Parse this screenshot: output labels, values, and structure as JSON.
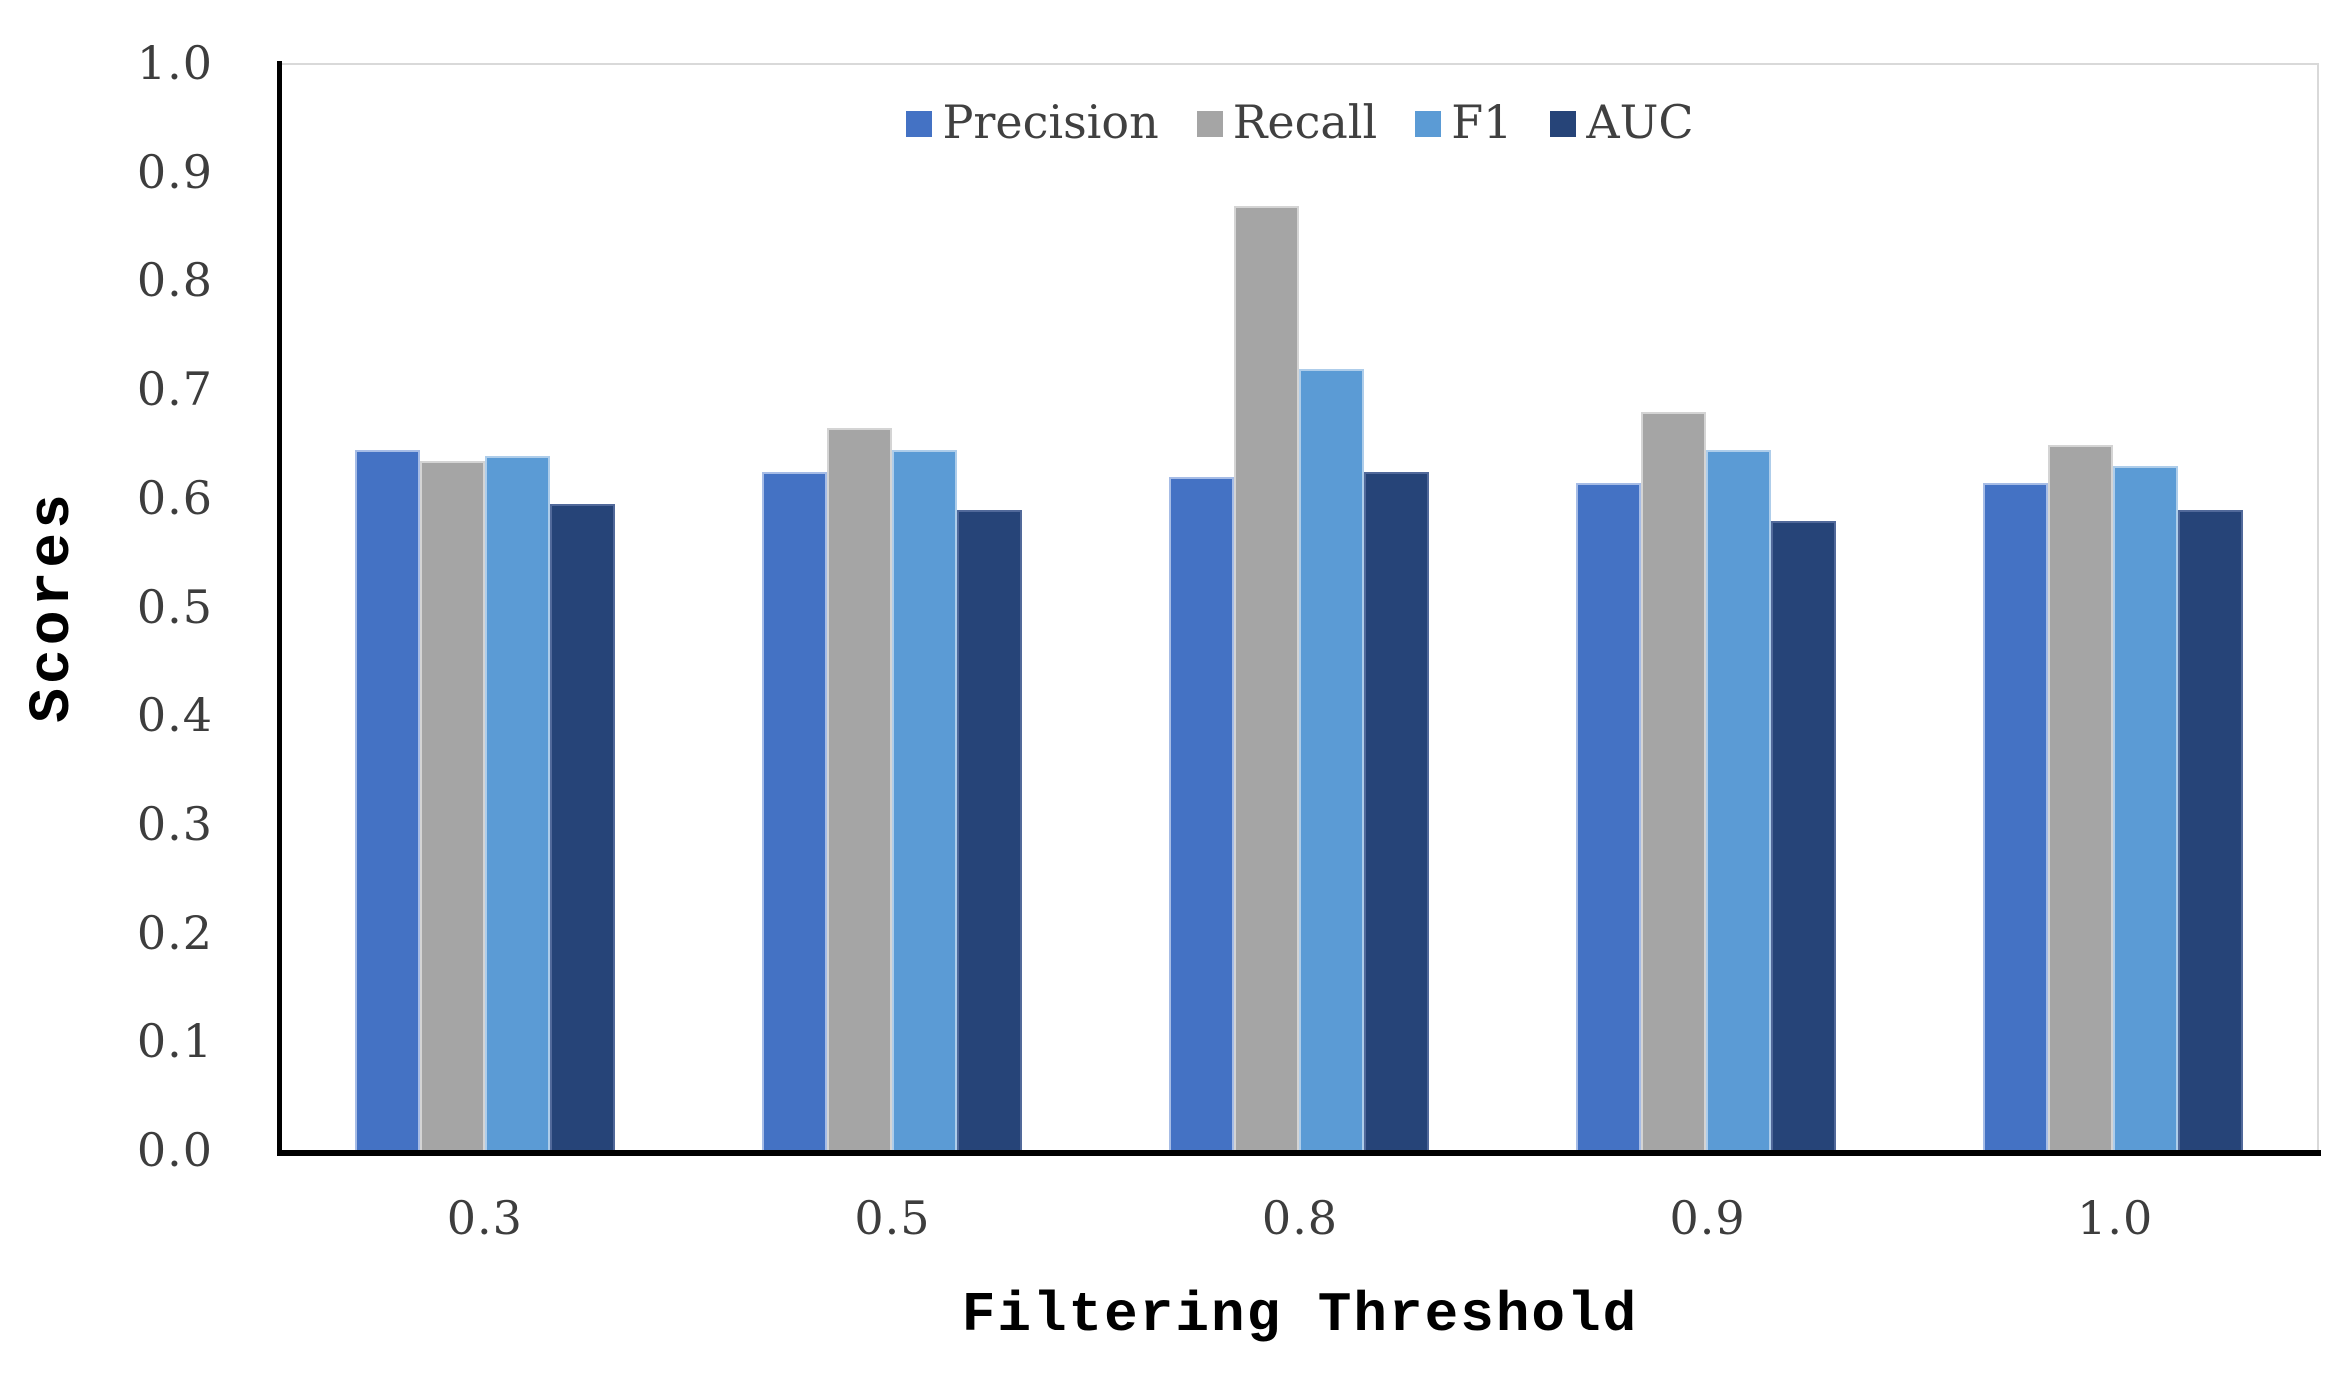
{
  "chart_data": {
    "type": "bar",
    "title": "",
    "xlabel": "Filtering Threshold",
    "ylabel": "Scores",
    "categories": [
      "0.3",
      "0.5",
      "0.8",
      "0.9",
      "1.0"
    ],
    "series": [
      {
        "name": "Precision",
        "color": "#4472C4",
        "border": "#a6bce6",
        "values": [
          0.645,
          0.625,
          0.62,
          0.615,
          0.615
        ]
      },
      {
        "name": "Recall",
        "color": "#A5A5A5",
        "border": "#d4d4d4",
        "values": [
          0.635,
          0.665,
          0.87,
          0.68,
          0.65
        ]
      },
      {
        "name": "F1",
        "color": "#5B9BD5",
        "border": "#aecdea",
        "values": [
          0.64,
          0.645,
          0.72,
          0.645,
          0.63
        ]
      },
      {
        "name": "AUC",
        "color": "#264478",
        "border": "#51699a",
        "values": [
          0.595,
          0.59,
          0.625,
          0.58,
          0.59
        ]
      }
    ],
    "ylim": [
      0.0,
      1.0
    ],
    "yticks": [
      "1.0",
      "0.9",
      "0.8",
      "0.7",
      "0.6",
      "0.5",
      "0.4",
      "0.3",
      "0.2",
      "0.1",
      "0.0"
    ],
    "legend_position": "top-center",
    "grid": false,
    "axis_color": "#000000",
    "tick_color": "#3d3d3d",
    "legend_text_color": "#404040"
  }
}
